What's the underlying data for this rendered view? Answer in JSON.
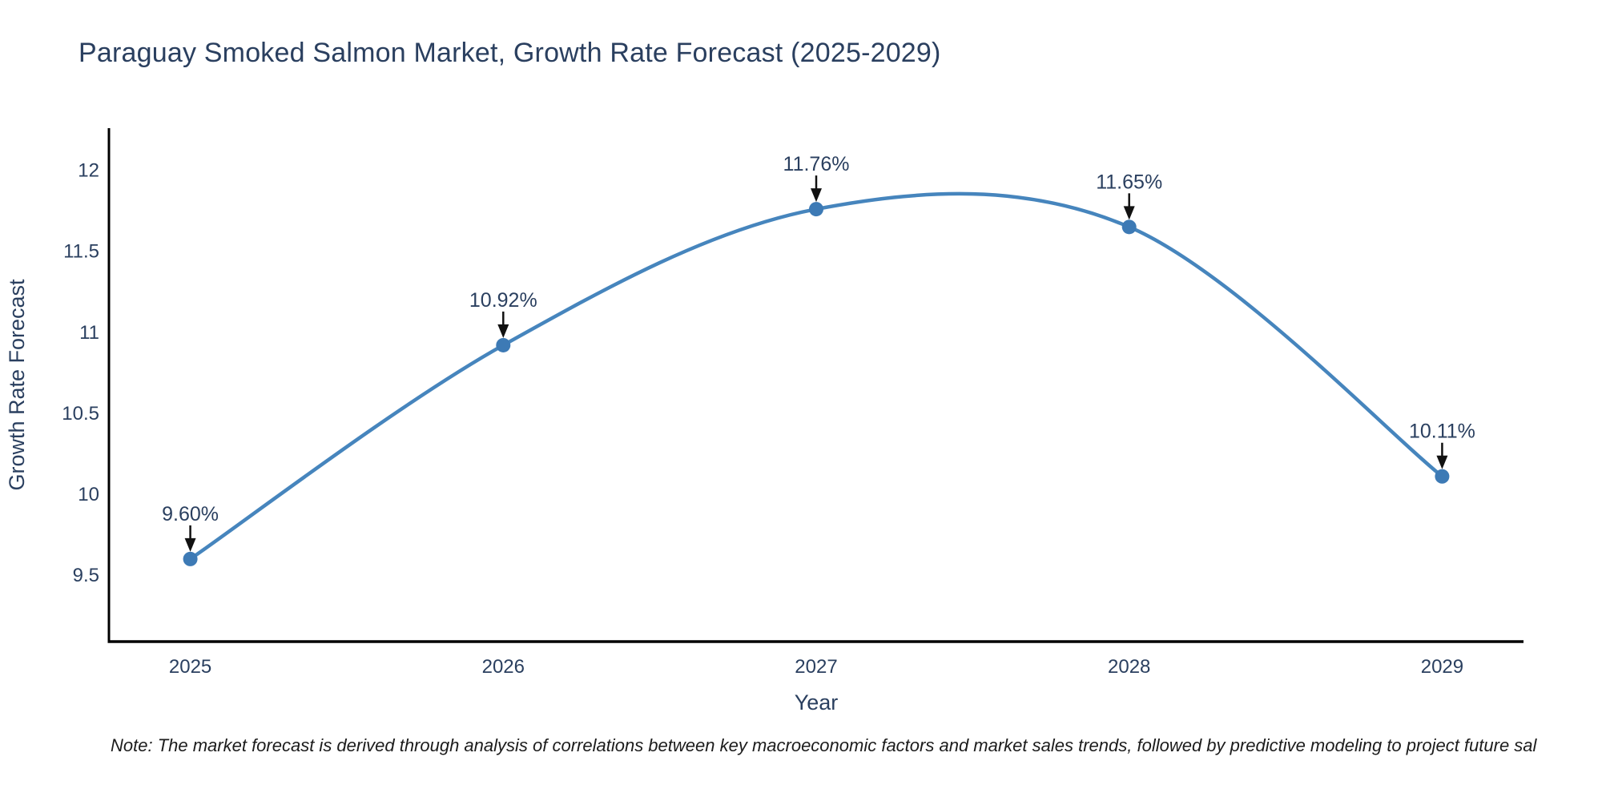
{
  "title": "Paraguay Smoked Salmon Market, Growth Rate Forecast (2025-2029)",
  "note": "Note: The market forecast is derived through analysis of correlations between key macroeconomic factors and market sales trends, followed by predictive modeling to project future sal",
  "chart_data": {
    "type": "line",
    "line_shape": "spline",
    "title": "Paraguay Smoked Salmon Market, Growth Rate Forecast (2025-2029)",
    "xlabel": "Year",
    "ylabel": "Growth Rate Forecast",
    "x": [
      2025,
      2026,
      2027,
      2028,
      2029
    ],
    "series": [
      {
        "name": "Growth Rate Forecast",
        "values": [
          9.6,
          10.92,
          11.76,
          11.65,
          10.11
        ]
      }
    ],
    "point_labels": [
      "9.60%",
      "10.92%",
      "11.76%",
      "11.65%",
      "10.11%"
    ],
    "xtick_labels": [
      "2025",
      "2026",
      "2027",
      "2028",
      "2029"
    ],
    "yticks": [
      9.5,
      10,
      10.5,
      11,
      11.5,
      12
    ],
    "ytick_labels": [
      "9.5",
      "10",
      "10.5",
      "11",
      "11.5",
      "12"
    ],
    "xlim": [
      2024.74,
      2029.26
    ],
    "ylim": [
      9.09,
      12.26
    ],
    "grid": false,
    "legend": "none",
    "colors": {
      "line": "#4685bd",
      "marker": "#3d7ab5",
      "text": "#2a3f5f",
      "axis": "#000000",
      "annotation": "#2a3f5f",
      "arrow": "#111111",
      "background": "#ffffff"
    }
  }
}
